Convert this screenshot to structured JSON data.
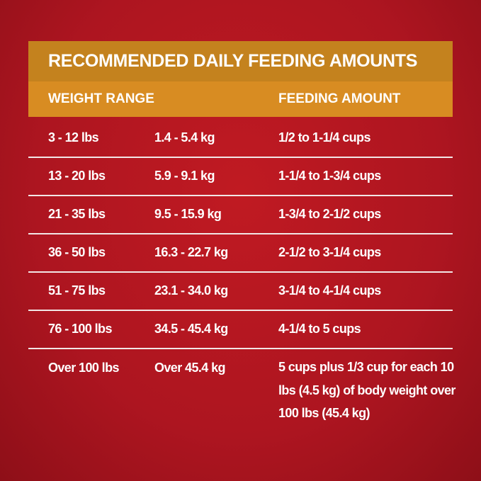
{
  "title": "RECOMMENDED DAILY FEEDING AMOUNTS",
  "headers": {
    "weight": "WEIGHT RANGE",
    "amount": "FEEDING AMOUNT"
  },
  "rows": [
    {
      "lbs": "3 - 12 lbs",
      "kg": "1.4 - 5.4 kg",
      "amount": "1/2 to 1-1/4 cups"
    },
    {
      "lbs": "13 - 20 lbs",
      "kg": "5.9 - 9.1 kg",
      "amount": "1-1/4 to 1-3/4 cups"
    },
    {
      "lbs": "21 - 35 lbs",
      "kg": "9.5 - 15.9 kg",
      "amount": "1-3/4 to 2-1/2 cups"
    },
    {
      "lbs": "36 - 50 lbs",
      "kg": "16.3 - 22.7 kg",
      "amount": "2-1/2 to 3-1/4 cups"
    },
    {
      "lbs": "51 - 75 lbs",
      "kg": "23.1 - 34.0 kg",
      "amount": "3-1/4 to 4-1/4 cups"
    },
    {
      "lbs": "76 - 100 lbs",
      "kg": "34.5 - 45.4 kg",
      "amount": "4-1/4 to 5 cups"
    },
    {
      "lbs": "Over 100 lbs",
      "kg": "Over 45.4 kg",
      "amount": "5 cups plus 1/3 cup for each 10 lbs (4.5 kg) of body weight over 100 lbs (45.4 kg)"
    }
  ],
  "colors": {
    "background": "#b3161f",
    "title_band": "#c4821e",
    "header_band": "#d88c22"
  }
}
